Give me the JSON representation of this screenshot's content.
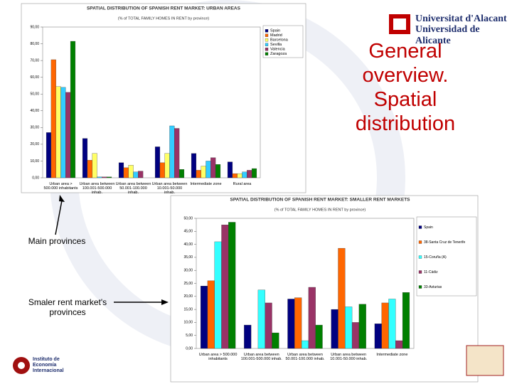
{
  "slide": {
    "title": "General overview. Spatial distribution",
    "label_main": "Main provinces",
    "label_smaller": "Smaler rent market's provinces",
    "university_1": "Universitat d'Alacant",
    "university_2": "Universidad de Alicante",
    "institute": "Instituto de Economía Internacional"
  },
  "chart_data": [
    {
      "type": "bar",
      "title": "SPATIAL DISTRIBUTION OF SPANISH RENT MARKET: URBAN AREAS",
      "subtitle": "(% of TOTAL FAMILY HOMES IN RENT by province)",
      "categories": [
        "Urban area > 500.000 inhabitants",
        "Urban area between 100.001-500.000 inhab.",
        "Urban area between 50.001-100.000 inhab.",
        "Urban area between 10.001-50.000 inhab.",
        "Intermediate zone",
        "Rural area"
      ],
      "series": [
        {
          "name": "Spain",
          "color": "#000080",
          "values": [
            27,
            23.5,
            9,
            18.5,
            14.5,
            9.5
          ]
        },
        {
          "name": "Madrid",
          "color": "#ff6600",
          "values": [
            70.5,
            10.5,
            6,
            9,
            4.5,
            2.5
          ]
        },
        {
          "name": "Barcelona",
          "color": "#ffff66",
          "values": [
            54.5,
            14.5,
            7.5,
            14.5,
            7,
            2.5
          ]
        },
        {
          "name": "Sevilla",
          "color": "#33ccff",
          "values": [
            54,
            0.5,
            3.5,
            31,
            10,
            3.5
          ]
        },
        {
          "name": "Valencia",
          "color": "#993366",
          "values": [
            51,
            0.5,
            4,
            29.5,
            12,
            4.5
          ]
        },
        {
          "name": "Zaragoza",
          "color": "#008000",
          "values": [
            81.5,
            0.5,
            0,
            5,
            8,
            5.5
          ]
        }
      ],
      "ylim": [
        0,
        90
      ],
      "yticks": [
        {
          "value": 0,
          "label": "0,00"
        },
        {
          "value": 10,
          "label": "10,00"
        },
        {
          "value": 20,
          "label": "20,00"
        },
        {
          "value": 30,
          "label": "30,00"
        },
        {
          "value": 40,
          "label": "40,00"
        },
        {
          "value": 50,
          "label": "50,00"
        },
        {
          "value": 60,
          "label": "60,00"
        },
        {
          "value": 70,
          "label": "70,00"
        },
        {
          "value": 80,
          "label": "80,00"
        },
        {
          "value": 90,
          "label": "90,00"
        }
      ],
      "grid": false,
      "legend": "upper right"
    },
    {
      "type": "bar",
      "title": "SPATIAL DISTRIBUTION OF SPANISH RENT MARKET: SMALLER RENT MARKETS",
      "subtitle": "(% of TOTAL FAMILY HOMES IN RENT by province)",
      "categories": [
        "Urban area > 500.000 inhabitants",
        "Urban area between 100.001-500.000 inhab.",
        "Urban area between 50.001-100.000 inhab.",
        "Urban area between 10.001-50.000 inhab.",
        "Intermediate zone"
      ],
      "series": [
        {
          "name": "Spain",
          "color": "#000080",
          "values": [
            24,
            9,
            19,
            15,
            9.5
          ]
        },
        {
          "name": "38-Santa Cruz de Tenerife",
          "color": "#ff6600",
          "values": [
            26,
            0,
            19.5,
            38.5,
            17.5
          ]
        },
        {
          "name": "15-Coruña (A)",
          "color": "#33ffff",
          "values": [
            41,
            22.5,
            3,
            16,
            19
          ]
        },
        {
          "name": "11-Cádiz",
          "color": "#993366",
          "values": [
            47.5,
            17.5,
            23.5,
            10,
            3
          ]
        },
        {
          "name": "33-Asturias",
          "color": "#008000",
          "values": [
            48.5,
            6,
            9,
            17,
            21.5
          ]
        }
      ],
      "ylim": [
        0,
        50
      ],
      "yticks": [
        {
          "value": 0,
          "label": "0,00"
        },
        {
          "value": 5,
          "label": "5,00"
        },
        {
          "value": 10,
          "label": "10,00"
        },
        {
          "value": 15,
          "label": "15,00"
        },
        {
          "value": 20,
          "label": "20,00"
        },
        {
          "value": 25,
          "label": "25,00"
        },
        {
          "value": 30,
          "label": "30,00"
        },
        {
          "value": 35,
          "label": "35,00"
        },
        {
          "value": 40,
          "label": "40,00"
        },
        {
          "value": 45,
          "label": "45,00"
        },
        {
          "value": 50,
          "label": "50,00"
        }
      ],
      "grid": false,
      "legend": "upper right"
    }
  ]
}
